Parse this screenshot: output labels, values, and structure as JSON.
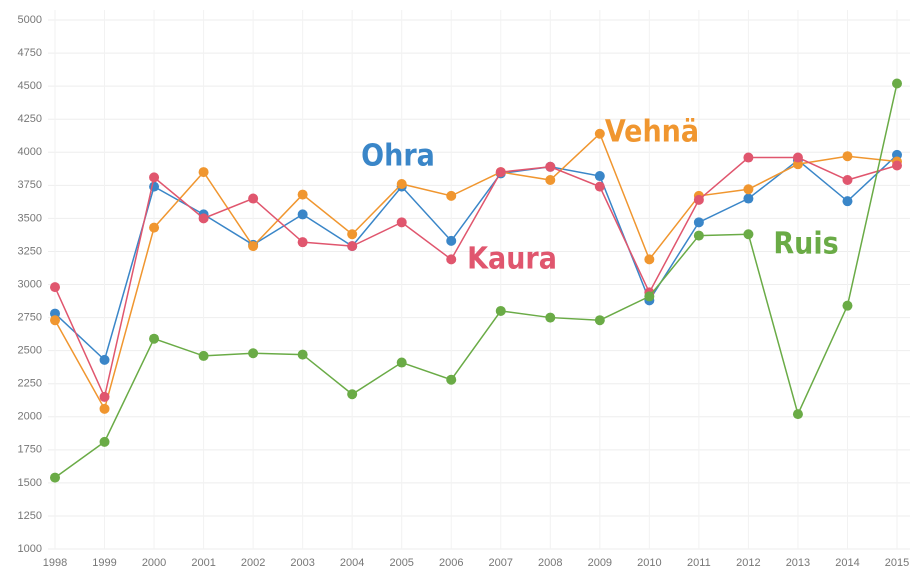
{
  "chart_data": {
    "type": "line",
    "x": [
      1998,
      1999,
      2000,
      2001,
      2002,
      2003,
      2004,
      2005,
      2006,
      2007,
      2008,
      2009,
      2010,
      2011,
      2012,
      2013,
      2014,
      2015
    ],
    "series": [
      {
        "name": "Ohra",
        "color": "#3a86c8",
        "values": [
          2780,
          2430,
          3740,
          3530,
          3300,
          3530,
          3290,
          3740,
          3330,
          3840,
          3890,
          3820,
          2880,
          3470,
          3650,
          3940,
          3630,
          3980
        ]
      },
      {
        "name": "Vehnä",
        "color": "#f0962f",
        "values": [
          2730,
          2060,
          3430,
          3850,
          3290,
          3680,
          3380,
          3760,
          3670,
          3850,
          3790,
          4140,
          3190,
          3670,
          3720,
          3910,
          3970,
          3930
        ]
      },
      {
        "name": "Kaura",
        "color": "#e0566e",
        "values": [
          2980,
          2150,
          3810,
          3500,
          3650,
          3320,
          3290,
          3470,
          3190,
          3850,
          3890,
          3740,
          2940,
          3640,
          3960,
          3960,
          3790,
          3900
        ]
      },
      {
        "name": "Ruis",
        "color": "#6aab46",
        "values": [
          1540,
          1810,
          2590,
          2460,
          2480,
          2470,
          2170,
          2410,
          2280,
          2800,
          2750,
          2730,
          2910,
          3370,
          3380,
          2020,
          2840,
          4520
        ]
      }
    ],
    "xlim": [
      1998,
      2015
    ],
    "xticks": [
      1998,
      1999,
      2000,
      2001,
      2002,
      2003,
      2004,
      2005,
      2006,
      2007,
      2008,
      2009,
      2010,
      2011,
      2012,
      2013,
      2014,
      2015
    ],
    "ylim": [
      1000,
      5000
    ],
    "yticks": [
      1000,
      1250,
      1500,
      1750,
      2000,
      2250,
      2500,
      2750,
      3000,
      3250,
      3500,
      3750,
      4000,
      4250,
      4500,
      4750,
      5000
    ],
    "grid": true
  }
}
